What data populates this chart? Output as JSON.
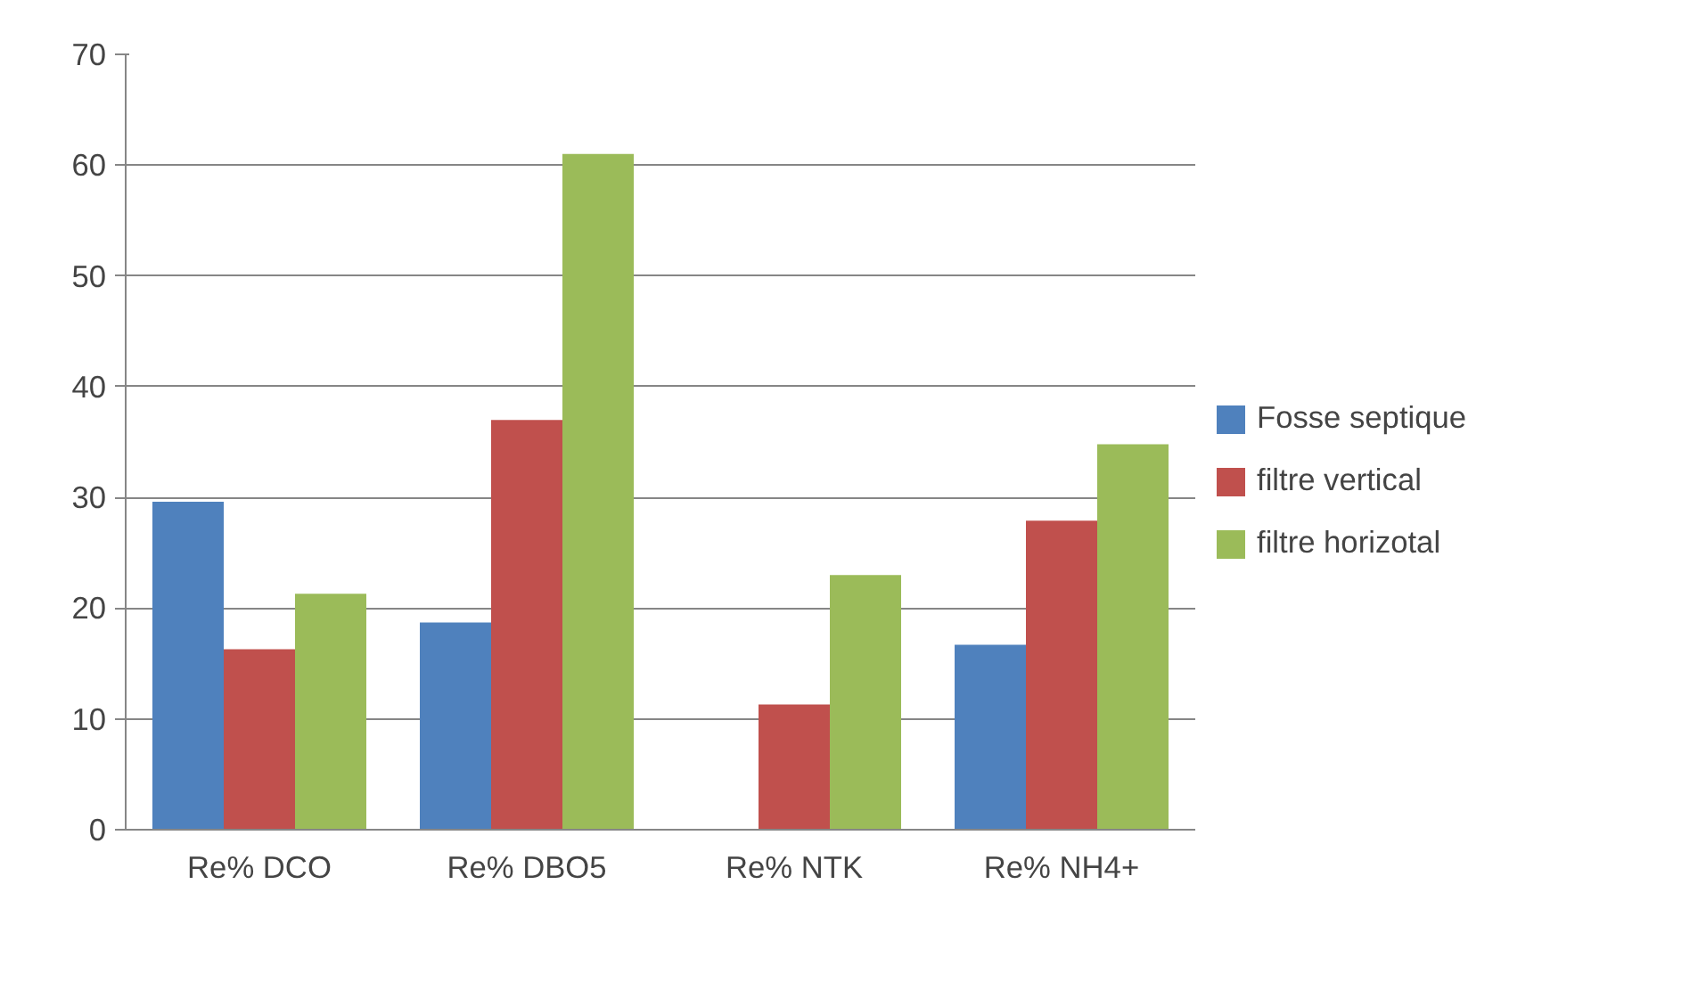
{
  "chart_data": {
    "type": "bar",
    "categories": [
      "Re% DCO",
      "Re% DBO5",
      "Re% NTK",
      "Re% NH4+"
    ],
    "series": [
      {
        "name": "Fosse septique",
        "color": "#4f81bd",
        "values": [
          29.6,
          18.7,
          0,
          16.7
        ]
      },
      {
        "name": "filtre vertical",
        "color": "#c0504d",
        "values": [
          16.3,
          37.0,
          11.3,
          27.9
        ]
      },
      {
        "name": "filtre horizotal",
        "color": "#9bbb59",
        "values": [
          21.3,
          61.0,
          23.0,
          34.8
        ]
      }
    ],
    "ylim": [
      0,
      70
    ],
    "yticks": [
      0,
      10,
      20,
      30,
      40,
      50,
      60,
      70
    ],
    "grid": "y",
    "legend": "right"
  }
}
